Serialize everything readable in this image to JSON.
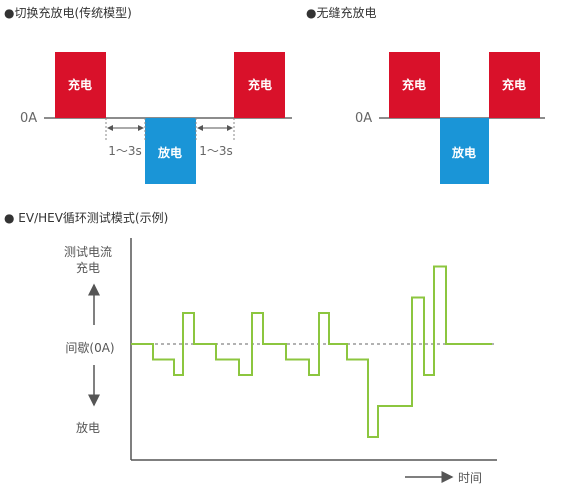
{
  "sections": {
    "switching_title": "●切换充放电(传统模型)",
    "seamless_title": "●无缝充放电",
    "ev_title": "● EV/HEV循环测试模式(示例)"
  },
  "switching_diagram": {
    "charge_label": "充电",
    "discharge_label": "放电",
    "zero_label": "0A",
    "interval_label": "1〜3s"
  },
  "seamless_diagram": {
    "charge_label": "充电",
    "discharge_label": "放电",
    "zero_label": "0A"
  },
  "ev_diagram": {
    "y_top_label_line1": "测试电流",
    "y_top_label_line2": "充电",
    "y_mid_label": "间歇(0A)",
    "y_bottom_label": "放电",
    "x_label": "时间",
    "waveform_levels": [
      0,
      -1,
      -2,
      2,
      0,
      -1,
      -2,
      2,
      0,
      -1,
      -2,
      2,
      0,
      -1,
      -6,
      -4,
      3,
      -2,
      5,
      0
    ]
  },
  "colors": {
    "charge": "#d9112a",
    "discharge": "#1a95d7",
    "waveform": "#8cc63f",
    "axis": "#555555"
  }
}
